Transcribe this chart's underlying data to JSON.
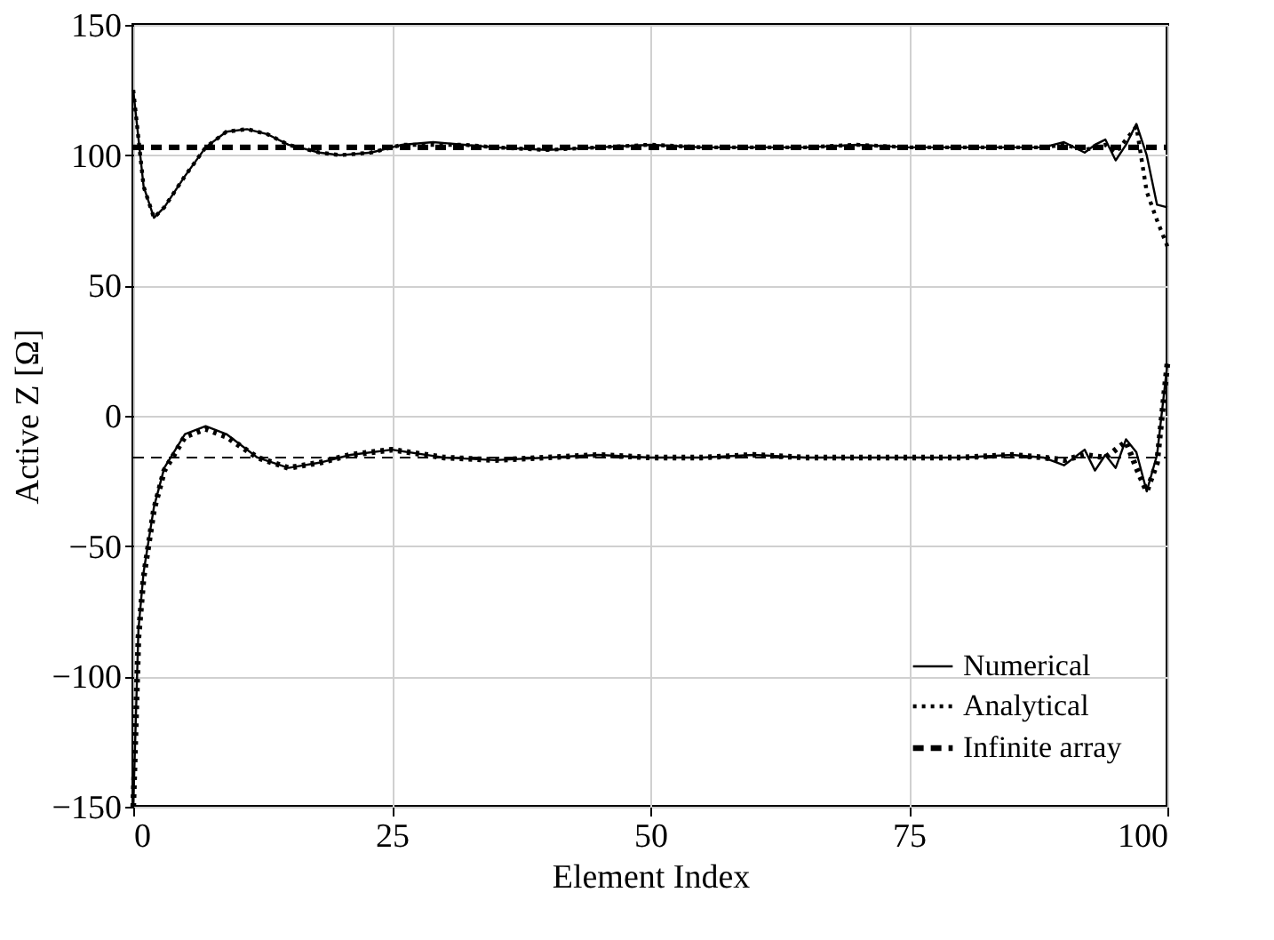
{
  "chart_data": {
    "type": "line",
    "xlabel": "Element Index",
    "ylabel": "Active Z [Ω]",
    "xlim": [
      0,
      100
    ],
    "xticks": [
      0,
      25,
      50,
      75,
      100
    ],
    "ylim": [
      -150,
      150
    ],
    "yticks": [
      -150,
      -100,
      -50,
      0,
      50,
      100,
      150
    ],
    "grid": true,
    "legend": "bottom right",
    "series": [
      {
        "name": "Numerical",
        "color": "#000000",
        "line_style": "solid",
        "x": [
          0,
          1,
          2,
          3,
          5,
          7,
          9,
          11,
          13,
          15,
          18,
          20,
          23,
          26,
          29,
          32,
          35,
          40,
          45,
          50,
          55,
          60,
          65,
          70,
          75,
          80,
          85,
          88,
          90,
          92,
          93,
          94,
          95,
          96,
          97,
          98,
          99,
          100
        ],
        "values": [
          125,
          88,
          76,
          80,
          92,
          103,
          109,
          110,
          108,
          104,
          101,
          100,
          101,
          104,
          105,
          104,
          103,
          102,
          103,
          104,
          103,
          103,
          103,
          104,
          103,
          103,
          103,
          103,
          105,
          101,
          104,
          106,
          98,
          104,
          112,
          100,
          81,
          80
        ]
      },
      {
        "color": "#000000",
        "line_style": "solid",
        "x": [
          0,
          0.5,
          1,
          2,
          3,
          5,
          7,
          9,
          12,
          15,
          18,
          21,
          25,
          30,
          35,
          40,
          45,
          50,
          55,
          60,
          65,
          70,
          75,
          80,
          85,
          88,
          90,
          92,
          93,
          94,
          95,
          96,
          97,
          98,
          99,
          100
        ],
        "values": [
          -150,
          -82,
          -60,
          -35,
          -20,
          -7,
          -4,
          -7,
          -16,
          -20,
          -18,
          -15,
          -13,
          -16,
          -17,
          -16,
          -15,
          -16,
          -16,
          -15,
          -16,
          -16,
          -16,
          -16,
          -15,
          -16,
          -19,
          -13,
          -21,
          -15,
          -20,
          -9,
          -14,
          -29,
          -15,
          20
        ]
      },
      {
        "name": "Analytical",
        "color": "#000000",
        "line_style": "dotted",
        "x": [
          0,
          1,
          2,
          3,
          5,
          7,
          9,
          11,
          13,
          15,
          18,
          20,
          23,
          26,
          29,
          32,
          35,
          40,
          45,
          50,
          55,
          60,
          65,
          70,
          75,
          80,
          85,
          88,
          90,
          92,
          94,
          95,
          96,
          97,
          98,
          99,
          100
        ],
        "values": [
          125,
          88,
          76,
          80,
          92,
          103,
          109,
          110,
          108,
          104,
          101,
          100,
          101,
          104,
          104,
          104,
          103,
          102,
          103,
          104,
          103,
          103,
          103,
          104,
          103,
          103,
          103,
          103,
          104,
          102,
          104,
          101,
          106,
          111,
          86,
          75,
          65
        ]
      },
      {
        "color": "#000000",
        "line_style": "dotted",
        "x": [
          0,
          0.5,
          1,
          2,
          3,
          5,
          7,
          9,
          12,
          15,
          18,
          21,
          25,
          30,
          35,
          40,
          45,
          50,
          55,
          60,
          65,
          70,
          75,
          80,
          85,
          88,
          90,
          92,
          94,
          95,
          96,
          97,
          98,
          99,
          100
        ],
        "values": [
          -150,
          -85,
          -62,
          -36,
          -21,
          -8,
          -5,
          -8,
          -16,
          -20,
          -18,
          -15,
          -13,
          -16,
          -17,
          -16,
          -15,
          -16,
          -16,
          -15,
          -16,
          -16,
          -16,
          -16,
          -15,
          -16,
          -17,
          -15,
          -16,
          -13,
          -10,
          -20,
          -29,
          -18,
          20
        ]
      },
      {
        "name": "Infinite array",
        "color": "#000000",
        "line_style": "dashed",
        "x": [
          0,
          100
        ],
        "values": [
          103,
          103
        ]
      },
      {
        "color": "#000000",
        "line_style": "dashed",
        "x": [
          0,
          100
        ],
        "values": [
          -16,
          -16
        ]
      }
    ]
  }
}
